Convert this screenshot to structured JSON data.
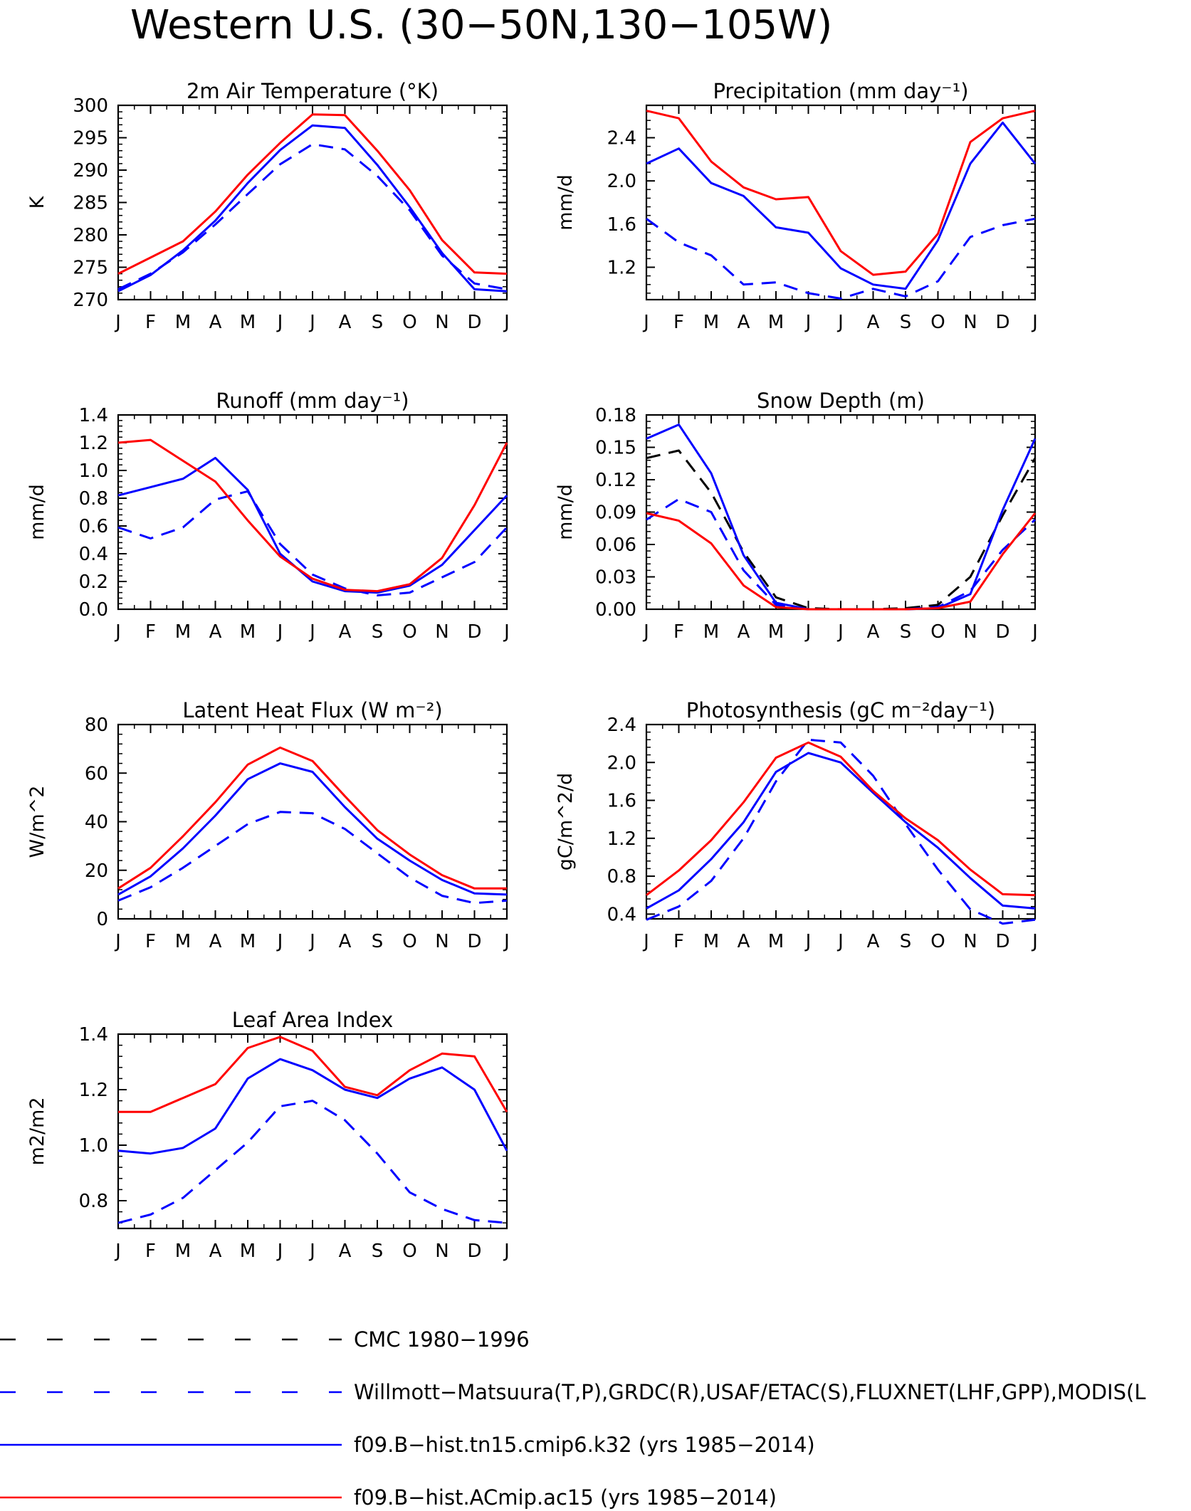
{
  "figure": {
    "title": "Western U.S. (30−50N,130−105W)"
  },
  "months": [
    "J",
    "F",
    "M",
    "A",
    "M",
    "J",
    "J",
    "A",
    "S",
    "O",
    "N",
    "D",
    "J"
  ],
  "colors": {
    "cmc": "#000000",
    "obs": "#0000ff",
    "k32": "#0000ff",
    "ac15": "#ff0000"
  },
  "legend": [
    {
      "key": "cmc",
      "label": "CMC 1980−1996",
      "dash": "dashed",
      "color": "#000000"
    },
    {
      "key": "obs",
      "label": "Willmott−Matsuura(T,P),GRDC(R),USAF/ETAC(S),FLUXNET(LHF,GPP),MODIS(L",
      "dash": "dashed",
      "color": "#0000ff"
    },
    {
      "key": "k32",
      "label": "f09.B−hist.tn15.cmip6.k32 (yrs 1985−2014)",
      "dash": "solid",
      "color": "#0000ff"
    },
    {
      "key": "ac15",
      "label": "f09.B−hist.ACmip.ac15 (yrs 1985−2014)",
      "dash": "solid",
      "color": "#ff0000"
    }
  ],
  "chart_data": [
    {
      "type": "line",
      "title": "2m Air Temperature (°K)",
      "ylabel": "K",
      "ylim": [
        270,
        300
      ],
      "yticks": [
        270,
        275,
        280,
        285,
        290,
        295,
        300
      ],
      "ytick_labels": [
        "270",
        "275",
        "280",
        "285",
        "290",
        "295",
        "300"
      ],
      "series": [
        {
          "key": "obs",
          "values": [
            271.6,
            274.0,
            277.3,
            281.6,
            286.3,
            290.9,
            294.0,
            293.2,
            289.1,
            283.8,
            276.8,
            272.5,
            271.6
          ]
        },
        {
          "key": "k32",
          "values": [
            271.3,
            273.8,
            277.6,
            282.2,
            288.0,
            293.1,
            296.9,
            296.5,
            290.8,
            284.3,
            277.2,
            271.6,
            271.3
          ]
        },
        {
          "key": "ac15",
          "values": [
            274.0,
            276.5,
            279.0,
            283.6,
            289.3,
            294.2,
            298.6,
            298.5,
            293.0,
            286.9,
            279.2,
            274.2,
            274.0
          ]
        }
      ]
    },
    {
      "type": "line",
      "title": "Precipitation (mm day⁻¹)",
      "ylabel": "mm/d",
      "ylim": [
        0.9,
        2.7
      ],
      "yticks": [
        1.2,
        1.6,
        2.0,
        2.4
      ],
      "ytick_labels": [
        "1.2",
        "1.6",
        "2.0",
        "2.4"
      ],
      "series": [
        {
          "key": "obs",
          "values": [
            1.65,
            1.43,
            1.31,
            1.04,
            1.06,
            0.96,
            0.91,
            1.0,
            0.93,
            1.07,
            1.48,
            1.59,
            1.65
          ]
        },
        {
          "key": "k32",
          "values": [
            2.16,
            2.3,
            1.98,
            1.86,
            1.57,
            1.52,
            1.19,
            1.04,
            1.0,
            1.45,
            2.16,
            2.54,
            2.16
          ]
        },
        {
          "key": "ac15",
          "values": [
            2.65,
            2.58,
            2.18,
            1.94,
            1.83,
            1.85,
            1.35,
            1.13,
            1.16,
            1.51,
            2.36,
            2.58,
            2.65
          ]
        }
      ]
    },
    {
      "type": "line",
      "title": "Runoff (mm day⁻¹)",
      "ylabel": "mm/d",
      "ylim": [
        0.0,
        1.4
      ],
      "yticks": [
        0.0,
        0.2,
        0.4,
        0.6,
        0.8,
        1.0,
        1.2,
        1.4
      ],
      "ytick_labels": [
        "0.0",
        "0.2",
        "0.4",
        "0.6",
        "0.8",
        "1.0",
        "1.2",
        "1.4"
      ],
      "series": [
        {
          "key": "obs",
          "values": [
            0.59,
            0.51,
            0.59,
            0.79,
            0.85,
            0.47,
            0.25,
            0.15,
            0.1,
            0.12,
            0.23,
            0.34,
            0.59
          ]
        },
        {
          "key": "k32",
          "values": [
            0.82,
            0.88,
            0.94,
            1.09,
            0.86,
            0.4,
            0.2,
            0.13,
            0.12,
            0.17,
            0.32,
            0.57,
            0.82
          ]
        },
        {
          "key": "ac15",
          "values": [
            1.2,
            1.22,
            1.07,
            0.92,
            0.64,
            0.38,
            0.22,
            0.14,
            0.13,
            0.18,
            0.37,
            0.75,
            1.2
          ]
        }
      ]
    },
    {
      "type": "line",
      "title": "Snow Depth (m)",
      "ylabel": "mm/d",
      "ylim": [
        0.0,
        0.18
      ],
      "yticks": [
        0.0,
        0.03,
        0.06,
        0.09,
        0.12,
        0.15,
        0.18
      ],
      "ytick_labels": [
        "0.00",
        "0.03",
        "0.06",
        "0.09",
        "0.12",
        "0.15",
        "0.18"
      ],
      "series": [
        {
          "key": "cmc",
          "values": [
            0.14,
            0.147,
            0.108,
            0.053,
            0.011,
            0.001,
            0.0,
            0.0,
            0.001,
            0.004,
            0.03,
            0.087,
            0.14
          ]
        },
        {
          "key": "obs",
          "values": [
            0.083,
            0.102,
            0.09,
            0.036,
            0.004,
            0.0,
            0.0,
            0.0,
            0.0,
            0.002,
            0.017,
            0.055,
            0.083
          ]
        },
        {
          "key": "k32",
          "values": [
            0.158,
            0.171,
            0.126,
            0.05,
            0.006,
            0.0,
            0.0,
            0.0,
            0.0,
            0.001,
            0.014,
            0.092,
            0.158
          ]
        },
        {
          "key": "ac15",
          "values": [
            0.089,
            0.082,
            0.061,
            0.022,
            0.002,
            0.0,
            0.0,
            0.0,
            0.0,
            0.001,
            0.007,
            0.051,
            0.089
          ]
        }
      ]
    },
    {
      "type": "line",
      "title": "Latent Heat Flux (W m⁻²)",
      "ylabel": "W/m^2",
      "ylim": [
        0,
        80
      ],
      "yticks": [
        0,
        20,
        40,
        60,
        80
      ],
      "ytick_labels": [
        "0",
        "20",
        "40",
        "60",
        "80"
      ],
      "series": [
        {
          "key": "obs",
          "values": [
            7.5,
            13.0,
            21.0,
            30.0,
            39.0,
            44.0,
            43.5,
            37.0,
            27.0,
            17.0,
            9.5,
            6.5,
            7.5
          ]
        },
        {
          "key": "k32",
          "values": [
            10.0,
            17.5,
            29.0,
            42.5,
            57.5,
            64.0,
            60.5,
            46.0,
            33.0,
            24.0,
            16.0,
            10.5,
            10.0
          ]
        },
        {
          "key": "ac15",
          "values": [
            12.5,
            21.0,
            34.0,
            48.0,
            63.5,
            70.5,
            65.0,
            50.5,
            36.5,
            26.5,
            18.0,
            12.5,
            12.5
          ]
        }
      ]
    },
    {
      "type": "line",
      "title": "Photosynthesis (gC m⁻²day⁻¹)",
      "ylabel": "gC/m^2/d",
      "ylim": [
        0.35,
        2.4
      ],
      "yticks": [
        0.4,
        0.8,
        1.2,
        1.6,
        2.0,
        2.4
      ],
      "ytick_labels": [
        "0.4",
        "0.8",
        "1.2",
        "1.6",
        "2.0",
        "2.4"
      ],
      "series": [
        {
          "key": "obs",
          "values": [
            0.34,
            0.48,
            0.75,
            1.2,
            1.8,
            2.24,
            2.21,
            1.86,
            1.35,
            0.87,
            0.45,
            0.3,
            0.34
          ]
        },
        {
          "key": "k32",
          "values": [
            0.46,
            0.65,
            0.98,
            1.37,
            1.9,
            2.1,
            2.0,
            1.68,
            1.37,
            1.1,
            0.78,
            0.49,
            0.46
          ]
        },
        {
          "key": "ac15",
          "values": [
            0.6,
            0.86,
            1.18,
            1.58,
            2.05,
            2.21,
            2.06,
            1.7,
            1.41,
            1.18,
            0.87,
            0.61,
            0.6
          ]
        }
      ]
    },
    {
      "type": "line",
      "title": "Leaf Area Index",
      "ylabel": "m2/m2",
      "ylim": [
        0.7,
        1.4
      ],
      "yticks": [
        0.8,
        1.0,
        1.2,
        1.4
      ],
      "ytick_labels": [
        "0.8",
        "1.0",
        "1.2",
        "1.4"
      ],
      "series": [
        {
          "key": "obs",
          "values": [
            0.72,
            0.75,
            0.81,
            0.91,
            1.01,
            1.14,
            1.16,
            1.09,
            0.97,
            0.83,
            0.77,
            0.73,
            0.72
          ]
        },
        {
          "key": "k32",
          "values": [
            0.98,
            0.97,
            0.99,
            1.06,
            1.24,
            1.31,
            1.27,
            1.2,
            1.17,
            1.24,
            1.28,
            1.2,
            0.98
          ]
        },
        {
          "key": "ac15",
          "values": [
            1.12,
            1.12,
            1.17,
            1.22,
            1.35,
            1.39,
            1.34,
            1.21,
            1.18,
            1.27,
            1.33,
            1.32,
            1.12
          ]
        }
      ]
    }
  ]
}
